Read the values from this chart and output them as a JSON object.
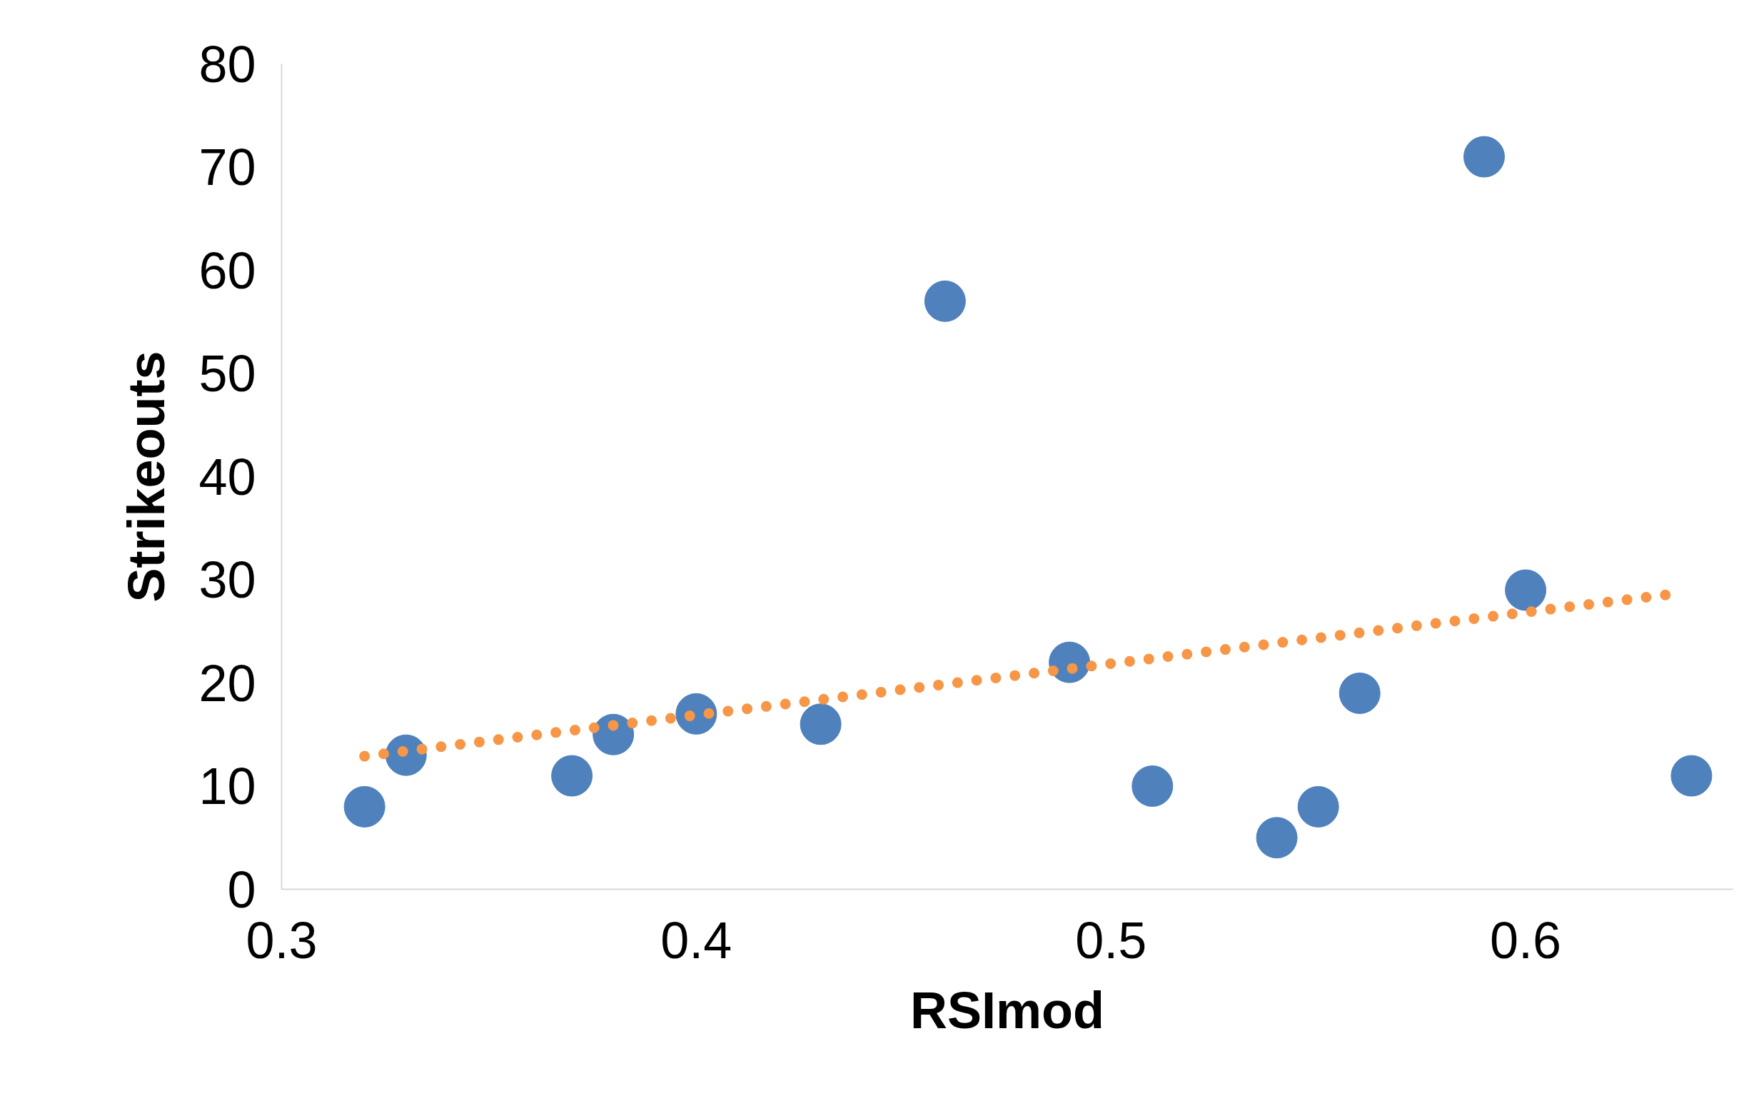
{
  "chart_data": {
    "type": "scatter",
    "xlabel": "RSImod",
    "ylabel": "Strikeouts",
    "xlim": [
      0.3,
      0.65
    ],
    "xticks": [
      0.3,
      0.4,
      0.5,
      0.6
    ],
    "ylim": [
      0,
      80
    ],
    "yticks": [
      0,
      10,
      20,
      30,
      40,
      50,
      60,
      70,
      80
    ],
    "grid": false,
    "marker": "circle",
    "series": [
      {
        "color": "#4f81bd",
        "x": [
          0.32,
          0.33,
          0.37,
          0.38,
          0.4,
          0.43,
          0.46,
          0.49,
          0.51,
          0.54,
          0.55,
          0.56,
          0.59,
          0.6,
          0.64
        ],
        "values": [
          8,
          13,
          11,
          15,
          17,
          16,
          57,
          22,
          10,
          5,
          8,
          19,
          71,
          29,
          11
        ]
      },
      {
        "type": "line",
        "marker": "none",
        "line_style": "dotted",
        "color": "#f79646",
        "x": [
          0.32,
          0.635
        ],
        "values": [
          12.9,
          28.6
        ]
      }
    ]
  }
}
